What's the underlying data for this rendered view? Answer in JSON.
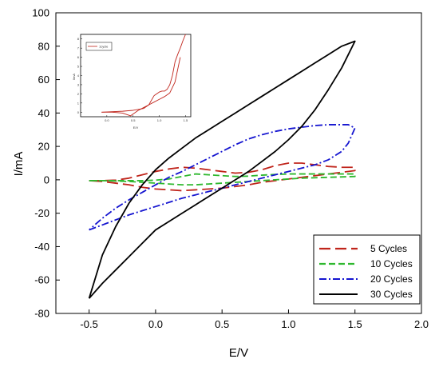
{
  "chart_data": [
    {
      "type": "line",
      "title": "",
      "xlabel": "E/V",
      "ylabel": "I/mA",
      "xlim": [
        -0.75,
        2.0
      ],
      "ylim": [
        -80,
        100
      ],
      "x_ticks": [
        "-0.5",
        "0.0",
        "0.5",
        "1.0",
        "1.5",
        "2.0"
      ],
      "x_tick_values": [
        -0.5,
        0.0,
        0.5,
        1.0,
        1.5,
        2.0
      ],
      "y_ticks": [
        "-80",
        "-60",
        "-40",
        "-20",
        "0",
        "20",
        "40",
        "60",
        "80",
        "100"
      ],
      "y_tick_values": [
        -80,
        -60,
        -40,
        -20,
        0,
        20,
        40,
        60,
        80,
        100
      ],
      "grid": false,
      "legend_position": "bottom-right",
      "series": [
        {
          "name": "5 Cycles",
          "color": "#c0251c",
          "dash": "long-dash",
          "x": [
            -0.5,
            -0.4,
            -0.3,
            -0.2,
            -0.1,
            0.0,
            0.1,
            0.2,
            0.3,
            0.4,
            0.5,
            0.6,
            0.7,
            0.8,
            0.9,
            1.0,
            1.1,
            1.2,
            1.3,
            1.4,
            1.5,
            1.5,
            1.4,
            1.3,
            1.2,
            1.1,
            1.0,
            0.9,
            0.8,
            0.7,
            0.6,
            0.5,
            0.4,
            0.3,
            0.2,
            0.1,
            0.0,
            -0.1,
            -0.2,
            -0.3,
            -0.4,
            -0.5
          ],
          "y": [
            -0.5,
            -0.5,
            -0.2,
            1.0,
            3.0,
            5.0,
            6.5,
            7.5,
            7.0,
            6.0,
            5.0,
            4.0,
            4.5,
            6.0,
            8.5,
            10.0,
            10.0,
            9.0,
            8.0,
            7.5,
            7.5,
            5.5,
            4.5,
            3.5,
            2.5,
            1.5,
            0.5,
            -0.5,
            -1.5,
            -3.0,
            -4.0,
            -5.0,
            -5.5,
            -6.0,
            -6.5,
            -6.0,
            -5.5,
            -4.5,
            -3.0,
            -2.0,
            -1.0,
            -0.5
          ]
        },
        {
          "name": "10 Cycles",
          "color": "#2fb82f",
          "dash": "dash",
          "x": [
            -0.5,
            -0.3,
            -0.1,
            0.0,
            0.1,
            0.2,
            0.3,
            0.4,
            0.5,
            0.6,
            0.7,
            0.8,
            0.9,
            1.0,
            1.2,
            1.4,
            1.5,
            1.5,
            1.3,
            1.1,
            1.0,
            0.9,
            0.8,
            0.7,
            0.6,
            0.5,
            0.4,
            0.3,
            0.2,
            0.1,
            0.0,
            -0.2,
            -0.4,
            -0.5
          ],
          "y": [
            -0.5,
            -0.5,
            -0.5,
            -0.2,
            0.5,
            2.0,
            3.5,
            3.0,
            2.5,
            2.0,
            2.2,
            2.8,
            3.2,
            3.5,
            3.5,
            3.5,
            3.5,
            2.0,
            1.5,
            1.0,
            0.5,
            0.0,
            -0.5,
            -1.0,
            -1.5,
            -2.0,
            -2.5,
            -3.0,
            -3.0,
            -2.5,
            -2.0,
            -1.0,
            -0.5,
            -0.5
          ]
        },
        {
          "name": "20 Cycles",
          "color": "#1515d0",
          "dash": "dash-dot",
          "x": [
            -0.5,
            -0.4,
            -0.3,
            -0.2,
            -0.1,
            0.0,
            0.1,
            0.2,
            0.3,
            0.4,
            0.5,
            0.6,
            0.7,
            0.8,
            0.9,
            1.0,
            1.1,
            1.2,
            1.3,
            1.4,
            1.45,
            1.5,
            1.45,
            1.4,
            1.3,
            1.2,
            1.1,
            1.0,
            0.9,
            0.8,
            0.7,
            0.6,
            0.5,
            0.4,
            0.3,
            0.2,
            0.1,
            0.0,
            -0.1,
            -0.2,
            -0.3,
            -0.4,
            -0.5
          ],
          "y": [
            -30.0,
            -27.0,
            -24.0,
            -21.0,
            -18.5,
            -16.0,
            -13.5,
            -11.0,
            -9.0,
            -7.0,
            -5.0,
            -3.0,
            -1.0,
            1.0,
            3.0,
            5.0,
            7.0,
            9.0,
            12.0,
            17.0,
            22.0,
            31.0,
            33.0,
            33.0,
            33.0,
            32.5,
            31.5,
            30.5,
            29.0,
            27.0,
            24.5,
            21.0,
            17.0,
            13.0,
            9.0,
            5.0,
            1.5,
            -3.0,
            -7.5,
            -12.0,
            -17.0,
            -23.0,
            -30.0
          ]
        },
        {
          "name": "30 Cycles",
          "color": "#000000",
          "dash": "solid",
          "x": [
            -0.5,
            -0.4,
            -0.3,
            -0.2,
            -0.1,
            0.0,
            0.1,
            0.2,
            0.3,
            0.4,
            0.5,
            0.6,
            0.7,
            0.8,
            0.9,
            1.0,
            1.1,
            1.2,
            1.3,
            1.4,
            1.5,
            1.4,
            1.3,
            1.2,
            1.1,
            1.0,
            0.9,
            0.8,
            0.7,
            0.6,
            0.5,
            0.4,
            0.3,
            0.2,
            0.1,
            0.0,
            -0.1,
            -0.2,
            -0.3,
            -0.4,
            -0.5
          ],
          "y": [
            -71.0,
            -62.0,
            -54.0,
            -46.0,
            -38.0,
            -30.0,
            -25.0,
            -20.0,
            -15.0,
            -10.0,
            -5.0,
            0.0,
            5.0,
            11.0,
            17.0,
            24.0,
            32.0,
            42.0,
            54.0,
            67.0,
            83.0,
            80.0,
            75.0,
            70.0,
            65.0,
            60.0,
            55.0,
            50.0,
            45.0,
            40.0,
            35.0,
            30.0,
            25.0,
            19.0,
            13.0,
            6.0,
            -3.0,
            -14.0,
            -28.0,
            -45.0,
            -71.0
          ]
        }
      ]
    },
    {
      "type": "line",
      "title": "",
      "xlabel": "E/V",
      "ylabel": "I/mA",
      "xlim": [
        -0.5,
        1.6
      ],
      "ylim": [
        -0.5,
        8.5
      ],
      "x_ticks": [
        "0.0",
        "0.5",
        "1.0",
        "1.5"
      ],
      "x_tick_values": [
        0.0,
        0.5,
        1.0,
        1.5
      ],
      "y_ticks": [
        "0",
        "1",
        "2",
        "3",
        "4",
        "5",
        "6",
        "7",
        "8"
      ],
      "y_tick_values": [
        0,
        1,
        2,
        3,
        4,
        5,
        6,
        7,
        8
      ],
      "grid": false,
      "legend_position": "top-left",
      "series": [
        {
          "name": "1cycle",
          "color": "#c0251c",
          "dash": "solid",
          "x": [
            -0.1,
            0.1,
            0.3,
            0.5,
            0.7,
            0.8,
            0.9,
            1.0,
            1.05,
            1.1,
            1.15,
            1.2,
            1.25,
            1.3,
            1.35,
            1.4,
            1.45,
            1.5
          ],
          "y": [
            0.0,
            0.05,
            0.1,
            0.2,
            0.4,
            0.8,
            1.8,
            2.2,
            2.3,
            2.3,
            2.5,
            3.0,
            4.0,
            5.5,
            6.3,
            7.0,
            7.8,
            8.5
          ]
        },
        {
          "name": "",
          "color": "#c0251c",
          "dash": "solid",
          "x": [
            1.4,
            1.3,
            1.2,
            1.1,
            1.0,
            0.9,
            0.8,
            0.7,
            0.6,
            0.5,
            0.45,
            0.4,
            0.3,
            0.2,
            0.1,
            0.0,
            -0.1
          ],
          "y": [
            6.0,
            3.3,
            2.1,
            1.7,
            1.4,
            1.1,
            0.8,
            0.5,
            0.2,
            -0.2,
            -0.4,
            -0.3,
            -0.1,
            -0.05,
            0.0,
            0.0,
            0.0
          ]
        }
      ]
    }
  ]
}
